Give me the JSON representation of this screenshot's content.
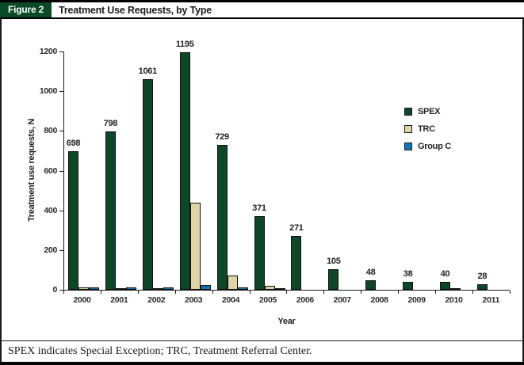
{
  "figure": {
    "badge": "Figure 2",
    "title": "Treatment Use Requests, by Type",
    "footnote": "SPEX indicates Special Exception; TRC, Treatment Referral Center."
  },
  "chart_data": {
    "type": "bar",
    "title": "Treatment Use Requests, by Type",
    "xlabel": "Year",
    "ylabel": "Treatment use requests, N",
    "ylim": [
      0,
      1200
    ],
    "yticks": [
      0,
      200,
      400,
      600,
      800,
      1000,
      1200
    ],
    "grid": false,
    "legend_position": "inside-right",
    "categories": [
      "2000",
      "2001",
      "2002",
      "2003",
      "2004",
      "2005",
      "2006",
      "2007",
      "2008",
      "2009",
      "2010",
      "2011"
    ],
    "series": [
      {
        "name": "SPEX",
        "color": "#0d4728",
        "show_value_labels": true,
        "values": [
          698,
          798,
          1061,
          1195,
          729,
          371,
          271,
          105,
          48,
          38,
          40,
          28
        ]
      },
      {
        "name": "TRC",
        "color": "#ddd5a7",
        "show_value_labels": false,
        "values": [
          12,
          3,
          3,
          440,
          70,
          20,
          0,
          0,
          0,
          0,
          5,
          0
        ]
      },
      {
        "name": "Group C",
        "color": "#1474ba",
        "show_value_labels": false,
        "values": [
          12,
          12,
          12,
          25,
          12,
          5,
          0,
          0,
          0,
          0,
          0,
          0
        ]
      }
    ]
  }
}
